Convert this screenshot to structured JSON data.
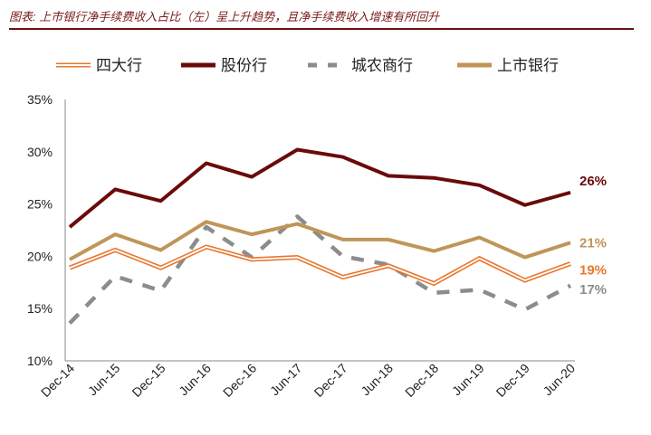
{
  "title": "图表: 上市银行净手续费收入占比（左）呈上升趋势，且净手续费收入增速有所回升",
  "chart_data": {
    "type": "line",
    "categories": [
      "Dec-14",
      "Jun-15",
      "Dec-15",
      "Jun-16",
      "Dec-16",
      "Jun-17",
      "Dec-17",
      "Jun-18",
      "Dec-18",
      "Jun-19",
      "Dec-19",
      "Jun-20"
    ],
    "ylim": [
      10,
      35
    ],
    "yticks": [
      "10%",
      "15%",
      "20%",
      "25%",
      "30%",
      "35%"
    ],
    "legend_position": "top",
    "series": [
      {
        "name": "四大行",
        "color": "#e8772e",
        "style": "double",
        "values": [
          18.9,
          20.6,
          18.9,
          20.9,
          19.7,
          19.9,
          18.0,
          19.1,
          17.4,
          19.8,
          17.7,
          19.3
        ],
        "end_label": "19%"
      },
      {
        "name": "股份行",
        "color": "#6b0a0a",
        "style": "solid",
        "values": [
          22.8,
          26.4,
          25.3,
          28.9,
          27.6,
          30.2,
          29.5,
          27.7,
          27.5,
          26.8,
          24.9,
          26.1
        ],
        "end_label": "26%"
      },
      {
        "name": "城农商行",
        "color": "#8c8c8c",
        "style": "dashed",
        "values": [
          13.6,
          18.1,
          16.7,
          22.8,
          19.9,
          23.8,
          20.0,
          19.2,
          16.5,
          16.8,
          14.9,
          17.2
        ],
        "end_label": "17%"
      },
      {
        "name": "上市银行",
        "color": "#c09558",
        "style": "solid",
        "values": [
          19.7,
          22.1,
          20.6,
          23.3,
          22.1,
          23.1,
          21.6,
          21.6,
          20.5,
          21.8,
          19.9,
          21.3
        ],
        "end_label": "21%"
      }
    ]
  }
}
